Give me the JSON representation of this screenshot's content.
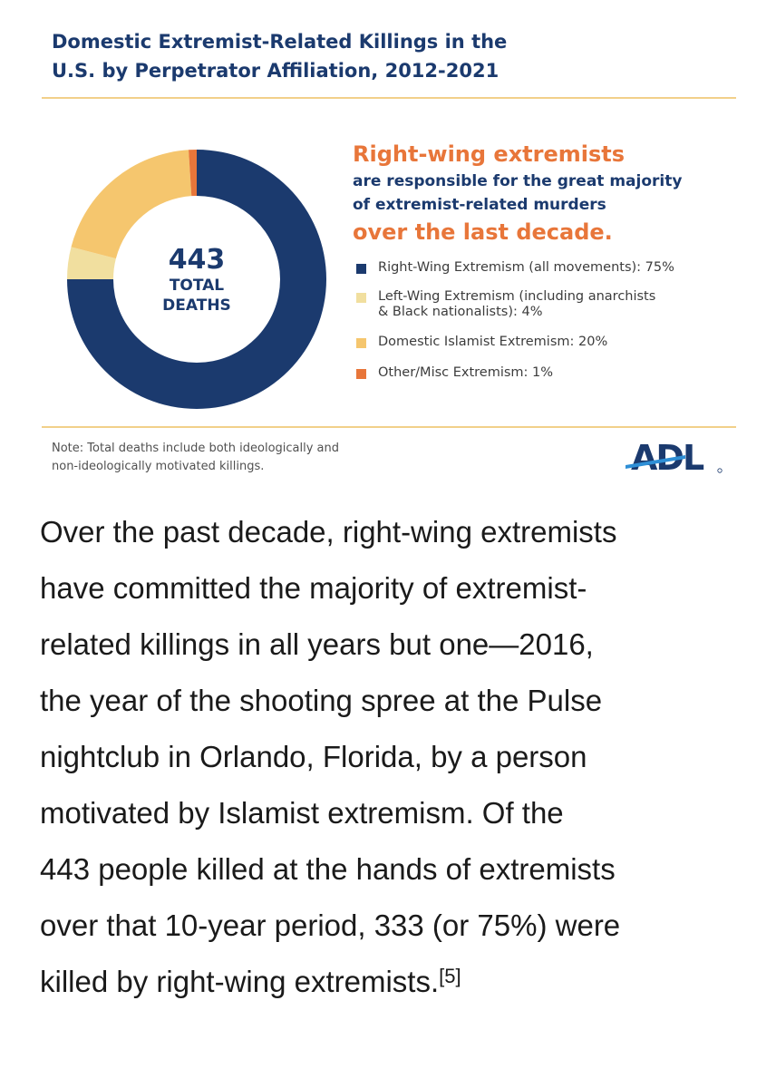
{
  "chart_data": {
    "type": "pie",
    "title_lines": [
      "Domestic Extremist-Related Killings in the",
      "U.S. by Perpetrator Affiliation, 2012-2021"
    ],
    "center": {
      "total": "443",
      "label_line1": "TOTAL",
      "label_line2": "DEATHS"
    },
    "headline": {
      "line1": "Right-wing extremists",
      "line2": "are responsible for the great majority",
      "line3": "of extremist-related murders",
      "line4": "over the last decade."
    },
    "slices": [
      {
        "name": "Right-Wing Extremism",
        "value": 75,
        "color": "#1b3a6e",
        "legend_line1": "Right-Wing Extremism (all movements):  75%",
        "legend_line2": ""
      },
      {
        "name": "Left-Wing Extremism",
        "value": 4,
        "color": "#f1df9f",
        "legend_line1": "Left-Wing Extremism (including anarchists",
        "legend_line2": "& Black nationalists):  4%"
      },
      {
        "name": "Domestic Islamist Extremism",
        "value": 20,
        "color": "#f5c66e",
        "legend_line1": "Domestic Islamist Extremism: 20%",
        "legend_line2": ""
      },
      {
        "name": "Other/Misc Extremism",
        "value": 1,
        "color": "#e8763a",
        "legend_line1": "Other/Misc Extremism: 1%",
        "legend_line2": ""
      }
    ],
    "note_line1": "Note: Total deaths include both ideologically and",
    "note_line2": "non-ideologically motivated killings.",
    "logo_text": "ADL",
    "legend_placement": "right"
  },
  "article": {
    "lines": [
      "Over the past decade, right-wing extremists",
      "have committed the majority of extremist-",
      "related killings in all years but one—2016,",
      "the year of the shooting spree at the Pulse",
      "nightclub in Orlando, Florida, by a person",
      "motivated by Islamist extremism. Of the",
      "443 people killed at the hands of extremists",
      "over that 10-year period, 333 (or 75%) were",
      "killed by right-wing extremists."
    ],
    "footnote": "[5]"
  },
  "colors": {
    "navy": "#1b3a6e",
    "orange": "#e8763a",
    "rule": "#f2d08a"
  }
}
